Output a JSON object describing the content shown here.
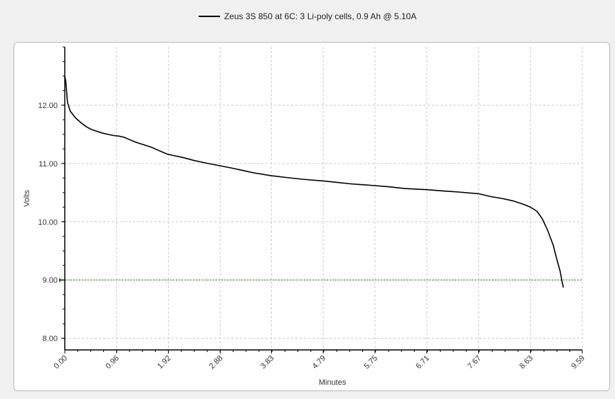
{
  "chart_data": {
    "type": "line",
    "legend_position": "top-center",
    "series": [
      {
        "name": "Zeus 3S 850 at 6C: 3 Li-poly cells, 0.9 Ah @ 5.10A",
        "color": "#000000",
        "x": [
          0.0,
          0.02,
          0.05,
          0.1,
          0.2,
          0.3,
          0.4,
          0.5,
          0.6,
          0.7,
          0.8,
          0.9,
          1.0,
          1.1,
          1.2,
          1.3,
          1.4,
          1.5,
          1.6,
          1.7,
          1.8,
          1.9,
          2.0,
          2.2,
          2.4,
          2.6,
          2.88,
          3.1,
          3.3,
          3.5,
          3.83,
          4.1,
          4.4,
          4.79,
          5.0,
          5.3,
          5.75,
          6.0,
          6.3,
          6.71,
          7.0,
          7.3,
          7.67,
          7.9,
          8.1,
          8.3,
          8.5,
          8.63,
          8.75,
          8.85,
          8.95,
          9.05,
          9.12,
          9.18,
          9.22,
          9.24
        ],
        "y": [
          12.5,
          12.4,
          12.05,
          11.9,
          11.78,
          11.7,
          11.63,
          11.58,
          11.55,
          11.52,
          11.5,
          11.48,
          11.47,
          11.45,
          11.41,
          11.37,
          11.34,
          11.31,
          11.28,
          11.24,
          11.2,
          11.16,
          11.14,
          11.1,
          11.05,
          11.01,
          10.96,
          10.92,
          10.88,
          10.84,
          10.79,
          10.76,
          10.73,
          10.7,
          10.68,
          10.65,
          10.62,
          10.6,
          10.57,
          10.55,
          10.53,
          10.51,
          10.48,
          10.43,
          10.4,
          10.36,
          10.3,
          10.25,
          10.18,
          10.05,
          9.85,
          9.6,
          9.35,
          9.15,
          8.95,
          8.87
        ]
      }
    ],
    "xlabel": "Minutes",
    "ylabel": "Volts",
    "xticks": [
      "0.00",
      "0.96",
      "1.92",
      "2.88",
      "3.83",
      "4.79",
      "5.75",
      "6.71",
      "7.67",
      "8.63",
      "9.59"
    ],
    "yticks": [
      "8.00",
      "9.00",
      "10.00",
      "11.00",
      "12.00"
    ],
    "xlim": [
      0,
      9.59
    ],
    "ylim": [
      7.8,
      13.0
    ],
    "grid": true,
    "reference_line": {
      "value": 9.0,
      "color": "#1a7a1a"
    }
  }
}
